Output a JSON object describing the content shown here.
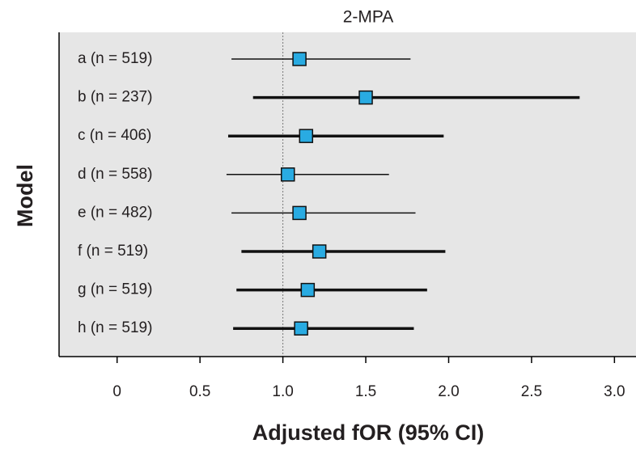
{
  "chart_data": {
    "type": "forest",
    "title": "2-MPA",
    "x_label": "Adjusted fOR (95% CI)",
    "y_label": "Model",
    "categories": [
      "a (n = 519)",
      "b (n = 237)",
      "c (n = 406)",
      "d (n = 558)",
      "e (n = 482)",
      "f (n = 519)",
      "g (n = 519)",
      "h (n = 519)"
    ],
    "values": [
      1.1,
      1.5,
      1.14,
      1.03,
      1.1,
      1.22,
      1.15,
      1.11
    ],
    "lower": [
      0.69,
      0.82,
      0.67,
      0.66,
      0.69,
      0.75,
      0.72,
      0.7
    ],
    "upper": [
      1.77,
      2.79,
      1.97,
      1.64,
      1.8,
      1.98,
      1.87,
      1.79
    ],
    "ci_line_width": [
      1.5,
      3.5,
      3.5,
      1.5,
      1.5,
      3.5,
      3.5,
      3.5
    ],
    "color": "#29abe2",
    "background": "#e6e6e6",
    "reference_line": 1,
    "xlim": [
      -0.35,
      3.13
    ],
    "xticks": [
      0,
      0.5,
      {
        "value": 1,
        "label": "1.0"
      },
      1.5,
      {
        "value": 2,
        "label": "2.0"
      },
      2.5,
      {
        "value": 3,
        "label": "3.0"
      }
    ]
  }
}
